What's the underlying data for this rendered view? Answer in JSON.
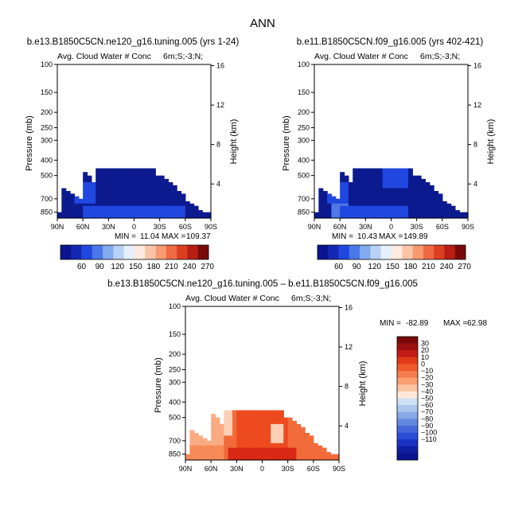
{
  "page_title": "ANN",
  "colors": {
    "positive": [
      "#7a0a0a",
      "#b01414",
      "#d92816",
      "#ee4a20",
      "#f26b3a",
      "#f88a58",
      "#fbab82",
      "#fdd0b5"
    ],
    "negative": [
      "#fbe8dc",
      "#d2e2f5",
      "#b0cdee",
      "#8fb3e8",
      "#6f98e0",
      "#517de0",
      "#3660e0",
      "#1f3fd8",
      "#1428b4",
      "#0a148e"
    ],
    "panel_fill_top": "#0c1a8f",
    "panel_fill_bright": "#2048e0"
  },
  "chart_data": [
    {
      "id": "panel1",
      "type": "heatmap",
      "title": "b.e13.B1850C5CN.ne120_g16.tuning.005 (yrs 1-24)",
      "subtitle_left": "Avg. Cloud Water # Conc",
      "subtitle_right": "6m;S;-3;N;",
      "ylabel_left": "Pressure (mb)",
      "ylabel_right": "Height (km)",
      "x_ticks": [
        "90N",
        "60N",
        "30N",
        "0",
        "30S",
        "60S",
        "90S"
      ],
      "x_range": [
        90,
        -90
      ],
      "p_ticks": [
        100,
        150,
        200,
        250,
        300,
        400,
        500,
        700,
        850
      ],
      "p_range": [
        100,
        925
      ],
      "h_ticks": [
        4,
        8,
        12,
        16
      ],
      "min_label": "MIN =",
      "min": 11.04,
      "max_label": "MAX =",
      "max": 109.37
    },
    {
      "id": "panel2",
      "type": "heatmap",
      "title": "b.e11.B1850C5CN.f09_g16.005 (yrs 402-421)",
      "subtitle_left": "Avg. Cloud Water # Conc",
      "subtitle_right": "6m;S;-3;N;",
      "ylabel_left": "Pressure (mb)",
      "ylabel_right": "Height (km)",
      "x_ticks": [
        "90N",
        "60N",
        "30N",
        "0",
        "30S",
        "60S",
        "90S"
      ],
      "x_range": [
        90,
        -90
      ],
      "p_ticks": [
        100,
        150,
        200,
        250,
        300,
        400,
        500,
        700,
        850
      ],
      "p_range": [
        100,
        925
      ],
      "h_ticks": [
        4,
        8,
        12,
        16
      ],
      "min_label": "MIN =",
      "min": 10.43,
      "max_label": "MAX =",
      "max": 149.89
    },
    {
      "id": "panel3",
      "type": "heatmap",
      "title": "b.e13.B1850C5CN.ne120_g16.tuning.005 – b.e11.B1850C5CN.f09_g16.005",
      "subtitle_left": "Avg. Cloud Water # Conc",
      "subtitle_right": "6m;S;-3;N;",
      "ylabel_left": "Pressure (mb)",
      "ylabel_right": "Height (km)",
      "x_ticks": [
        "90N",
        "60N",
        "30N",
        "0",
        "30S",
        "60S",
        "90S"
      ],
      "x_range": [
        90,
        -90
      ],
      "p_ticks": [
        100,
        150,
        200,
        250,
        300,
        400,
        500,
        700,
        850
      ],
      "p_range": [
        100,
        925
      ],
      "h_ticks": [
        4,
        8,
        12,
        16
      ],
      "min_label": "MIN =",
      "min": -82.89,
      "max_label": "MAX =",
      "max": 62.98
    }
  ],
  "colorbar_top": {
    "labels": [
      "60",
      "90",
      "120",
      "150",
      "180",
      "210",
      "240",
      "270"
    ],
    "colors": [
      "#0a148e",
      "#1428b4",
      "#2048e0",
      "#4a78e6",
      "#82aaee",
      "#b8d2f5",
      "#e6f0fc",
      "#fdebe0",
      "#fbc4a8",
      "#f79a72",
      "#ef6a44",
      "#dc3e22",
      "#b81e14",
      "#7a0a0a"
    ]
  },
  "colorbar_diff": {
    "labels": [
      "30",
      "20",
      "10",
      "0",
      "−10",
      "−20",
      "−30",
      "−40",
      "−50",
      "−60",
      "−70",
      "−80",
      "−90",
      "−100",
      "−110"
    ],
    "colors": [
      "#7a0a0a",
      "#9c1010",
      "#c21a14",
      "#e03a1a",
      "#f05a2c",
      "#f67c4c",
      "#f99f72",
      "#fcc4a2",
      "#fde8d8",
      "#cfe0f5",
      "#a9c6ee",
      "#86a8e6",
      "#6488de",
      "#4468dc",
      "#2a4cd6",
      "#1a32c4",
      "#0f1fa4",
      "#0a148e"
    ]
  }
}
